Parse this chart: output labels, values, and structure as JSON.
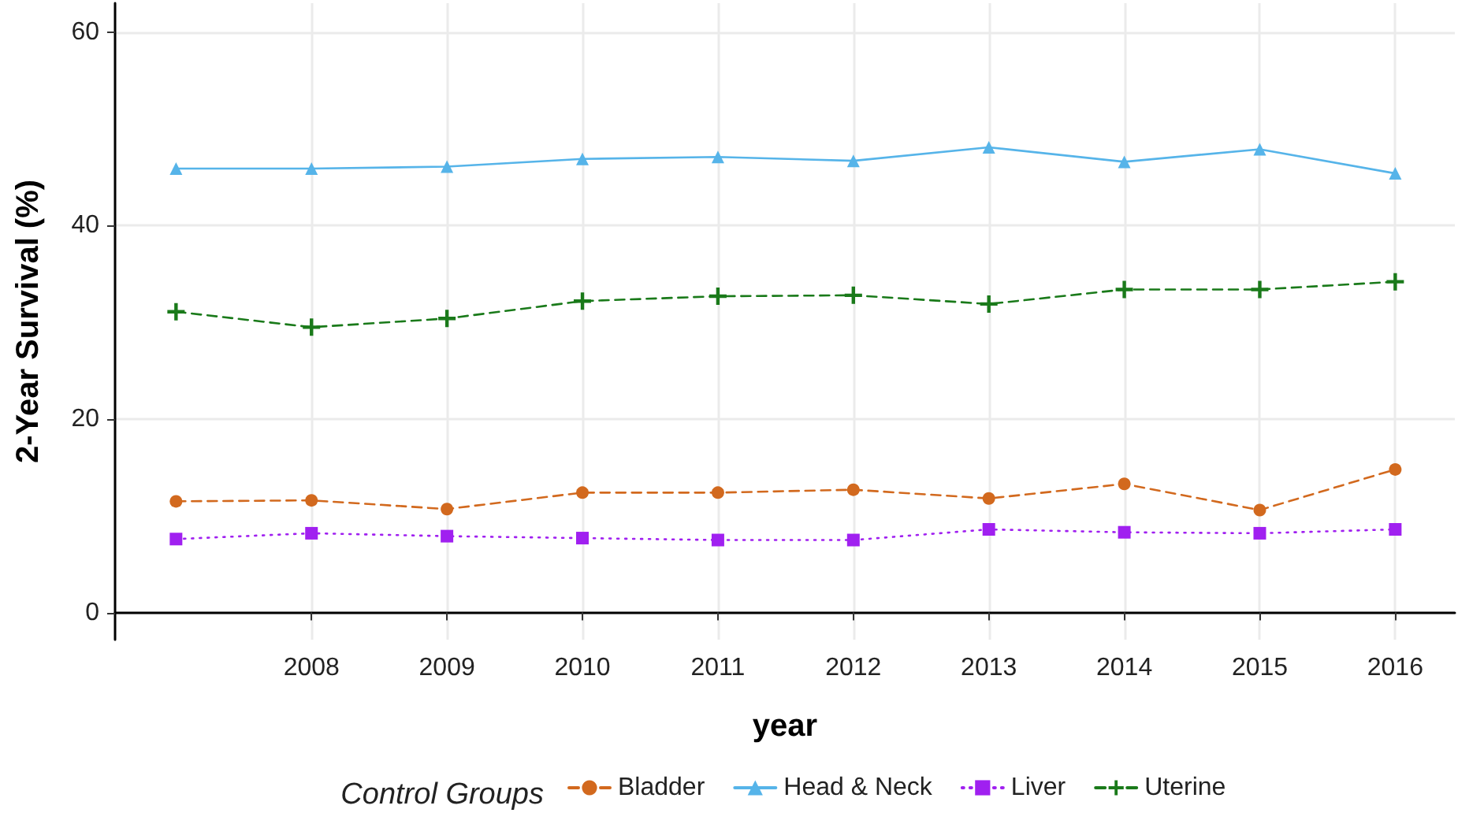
{
  "chart_data": {
    "type": "line",
    "xlabel": "year",
    "ylabel": "2-Year Survival (%)",
    "legend_title": "Control Groups",
    "legend": "bottom",
    "grid": true,
    "x": [
      2007,
      2008,
      2009,
      2010,
      2011,
      2012,
      2013,
      2014,
      2015,
      2016
    ],
    "xlim": [
      2006.55,
      2016.44
    ],
    "xticks": [
      2008,
      2009,
      2010,
      2011,
      2012,
      2013,
      2014,
      2015,
      2016
    ],
    "ylim": [
      -2.8,
      63
    ],
    "yticks": [
      0,
      20,
      40,
      60
    ],
    "series": [
      {
        "name": "Bladder",
        "color": "#d2691e",
        "marker": "circle",
        "line_style": "dashed",
        "values": [
          11.5,
          11.6,
          10.7,
          12.4,
          12.4,
          12.7,
          11.8,
          13.3,
          10.6,
          14.8
        ]
      },
      {
        "name": "Head & Neck",
        "color": "#56b4e9",
        "marker": "triangle",
        "line_style": "solid",
        "values": [
          45.9,
          45.9,
          46.1,
          46.9,
          47.1,
          46.7,
          48.1,
          46.6,
          47.9,
          45.4
        ]
      },
      {
        "name": "Liver",
        "color": "#a020f0",
        "marker": "square",
        "line_style": "dotted",
        "values": [
          7.6,
          8.2,
          7.9,
          7.7,
          7.5,
          7.5,
          8.6,
          8.3,
          8.2,
          8.6
        ]
      },
      {
        "name": "Uterine",
        "color": "#1a7a1a",
        "marker": "cross",
        "line_style": "dashed",
        "values": [
          31.1,
          29.5,
          30.4,
          32.2,
          32.7,
          32.8,
          31.9,
          33.4,
          33.4,
          34.2
        ]
      }
    ]
  }
}
